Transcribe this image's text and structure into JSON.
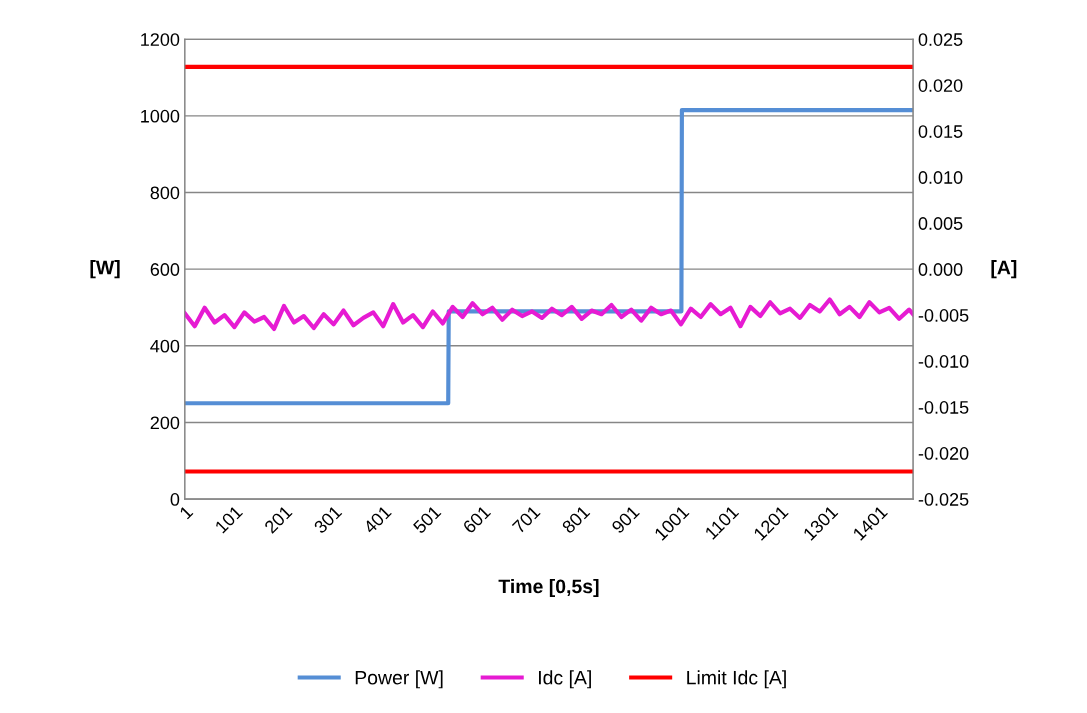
{
  "chart_data": {
    "type": "line",
    "xlabel": "Time [0,5s]",
    "ylabel": "[W]",
    "y2label": "[A]",
    "xlim": [
      1,
      1469
    ],
    "xticks": [
      1,
      101,
      201,
      301,
      401,
      501,
      601,
      701,
      801,
      901,
      1001,
      1101,
      1201,
      1301,
      1401
    ],
    "ylim": [
      0,
      1200
    ],
    "yticks": [
      0,
      200,
      400,
      600,
      800,
      1000,
      1200
    ],
    "y2lim": [
      -0.025,
      0.025
    ],
    "y2ticks": [
      {
        "value": -0.025,
        "label": "-0.025"
      },
      {
        "value": -0.02,
        "label": "-0.020"
      },
      {
        "value": -0.015,
        "label": "-0.015"
      },
      {
        "value": -0.01,
        "label": "-0.010"
      },
      {
        "value": -0.005,
        "label": "-0.005"
      },
      {
        "value": 0,
        "label": "0.000"
      },
      {
        "value": 0.005,
        "label": "0.005"
      },
      {
        "value": 0.01,
        "label": "0.010"
      },
      {
        "value": 0.015,
        "label": "0.015"
      },
      {
        "value": 0.02,
        "label": "0.020"
      },
      {
        "value": 0.025,
        "label": "0.025"
      }
    ],
    "grid": "y",
    "legend": "bottom",
    "line_style": "solid",
    "marker": "none",
    "series": [
      {
        "name": "Power [W]",
        "color": "#558ed5",
        "x": [
          1,
          532,
          533,
          1002,
          1003,
          1469
        ],
        "values": [
          250,
          250,
          490,
          490,
          1015,
          1015
        ]
      },
      {
        "name": "Idc [A]",
        "color": "#e61bd2",
        "axis": "y2",
        "x": [
          1,
          21,
          41,
          61,
          81,
          101,
          121,
          141,
          161,
          181,
          201,
          221,
          241,
          261,
          281,
          301,
          321,
          341,
          361,
          381,
          401,
          421,
          441,
          461,
          481,
          501,
          521,
          541,
          561,
          581,
          601,
          621,
          641,
          661,
          681,
          701,
          721,
          741,
          761,
          781,
          801,
          821,
          841,
          861,
          881,
          901,
          921,
          941,
          961,
          981,
          1001,
          1021,
          1041,
          1061,
          1081,
          1101,
          1121,
          1141,
          1161,
          1181,
          1201,
          1221,
          1241,
          1261,
          1281,
          1301,
          1321,
          1341,
          1361,
          1381,
          1401,
          1421,
          1441,
          1461,
          1469
        ],
        "values": [
          -0.0048,
          -0.0062,
          -0.0042,
          -0.0058,
          -0.005,
          -0.0063,
          -0.0047,
          -0.0057,
          -0.0052,
          -0.0065,
          -0.004,
          -0.0058,
          -0.0051,
          -0.0064,
          -0.0049,
          -0.006,
          -0.0045,
          -0.0061,
          -0.0053,
          -0.0047,
          -0.0062,
          -0.0038,
          -0.0058,
          -0.005,
          -0.0063,
          -0.0046,
          -0.0059,
          -0.0041,
          -0.0052,
          -0.0037,
          -0.0049,
          -0.0042,
          -0.0055,
          -0.0044,
          -0.0051,
          -0.0046,
          -0.0053,
          -0.0043,
          -0.005,
          -0.0041,
          -0.0054,
          -0.0045,
          -0.0049,
          -0.0039,
          -0.0052,
          -0.0044,
          -0.0056,
          -0.0042,
          -0.0049,
          -0.0045,
          -0.006,
          -0.0043,
          -0.0052,
          -0.0038,
          -0.0049,
          -0.0042,
          -0.0062,
          -0.0041,
          -0.0051,
          -0.0036,
          -0.0048,
          -0.0043,
          -0.0053,
          -0.0039,
          -0.0046,
          -0.0033,
          -0.0049,
          -0.0041,
          -0.0052,
          -0.0036,
          -0.0047,
          -0.0042,
          -0.0054,
          -0.0044,
          -0.0049
        ]
      },
      {
        "name": "Limit Idc [A]",
        "color": "#ff0000",
        "axis": "y2",
        "x": [
          1,
          1469
        ],
        "values": [
          0.022,
          0.022
        ]
      },
      {
        "color": "#ff0000",
        "axis": "y2",
        "x": [
          1,
          1469
        ],
        "values": [
          -0.022,
          -0.022
        ]
      }
    ]
  }
}
